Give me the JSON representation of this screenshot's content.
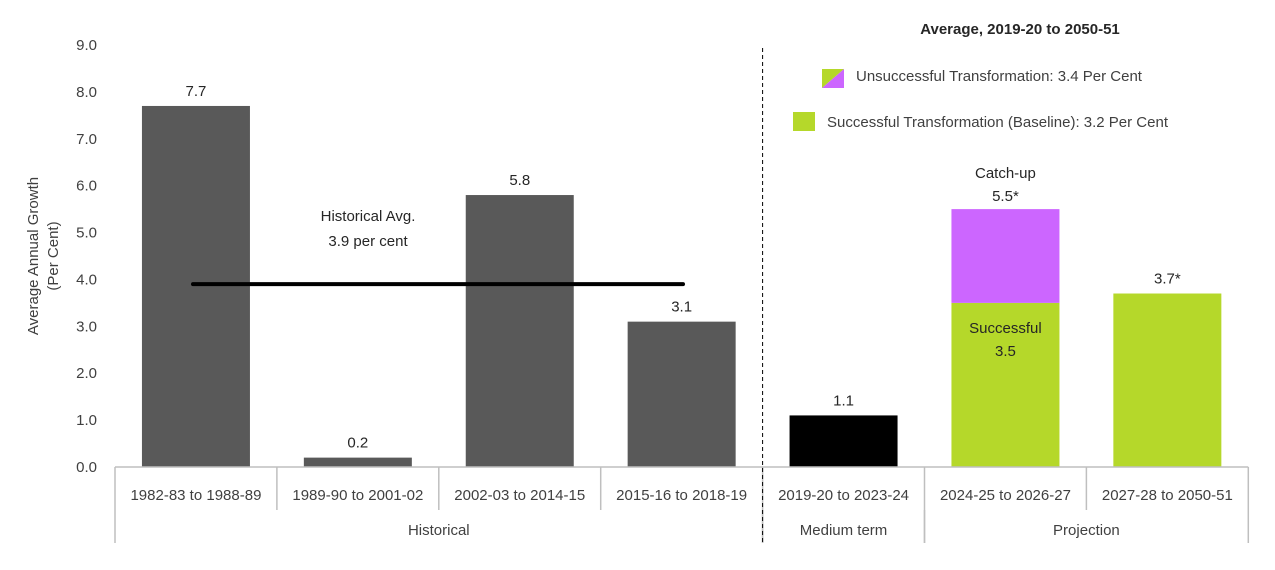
{
  "chart_data": {
    "type": "bar",
    "ylabel_lines": [
      "Average Annual Growth",
      "(Per Cent)"
    ],
    "ylim": [
      0,
      9
    ],
    "yticks": [
      "0.0",
      "1.0",
      "2.0",
      "3.0",
      "4.0",
      "5.0",
      "6.0",
      "7.0",
      "8.0",
      "9.0"
    ],
    "categories": [
      "1982-83 to 1988-89",
      "1989-90 to 2001-02",
      "2002-03 to 2014-15",
      "2015-16 to 2018-19",
      "2019-20 to 2023-24",
      "2024-25 to 2026-27",
      "2027-28 to 2050-51"
    ],
    "groups": [
      {
        "label": "Historical",
        "span": [
          0,
          3
        ]
      },
      {
        "label": "Medium term",
        "span": [
          4,
          4
        ]
      },
      {
        "label": "Projection",
        "span": [
          5,
          6
        ]
      }
    ],
    "bars": [
      {
        "value": 7.7,
        "label": "7.7",
        "color": "#595959"
      },
      {
        "value": 0.2,
        "label": "0.2",
        "color": "#595959"
      },
      {
        "value": 5.8,
        "label": "5.8",
        "color": "#595959"
      },
      {
        "value": 3.1,
        "label": "3.1",
        "color": "#595959"
      },
      {
        "value": 1.1,
        "label": "1.1",
        "color": "#000000"
      },
      {
        "value": 3.5,
        "top": 5.5,
        "label": "5.5*",
        "color": "#b5d82a",
        "top_color": "#cc66ff",
        "inner_label_lines": [
          "Successful",
          "3.5"
        ],
        "above_label": "Catch-up"
      },
      {
        "value": 3.7,
        "label": "3.7*",
        "color": "#b5d82a"
      }
    ],
    "historical_average": {
      "value": 3.9,
      "label_lines": [
        "Historical Avg.",
        "3.9 per cent"
      ],
      "span": [
        0,
        3
      ]
    },
    "legend": {
      "title": "Average, 2019-20 to 2050-51",
      "placement": "top-right",
      "items": [
        {
          "label": "Unsuccessful Transformation: 3.4 Per Cent",
          "color": "#cc66ff",
          "accent": "#b5d82a"
        },
        {
          "label": "Successful Transformation (Baseline): 3.2 Per Cent",
          "color": "#b5d82a"
        }
      ]
    },
    "grid": false
  }
}
